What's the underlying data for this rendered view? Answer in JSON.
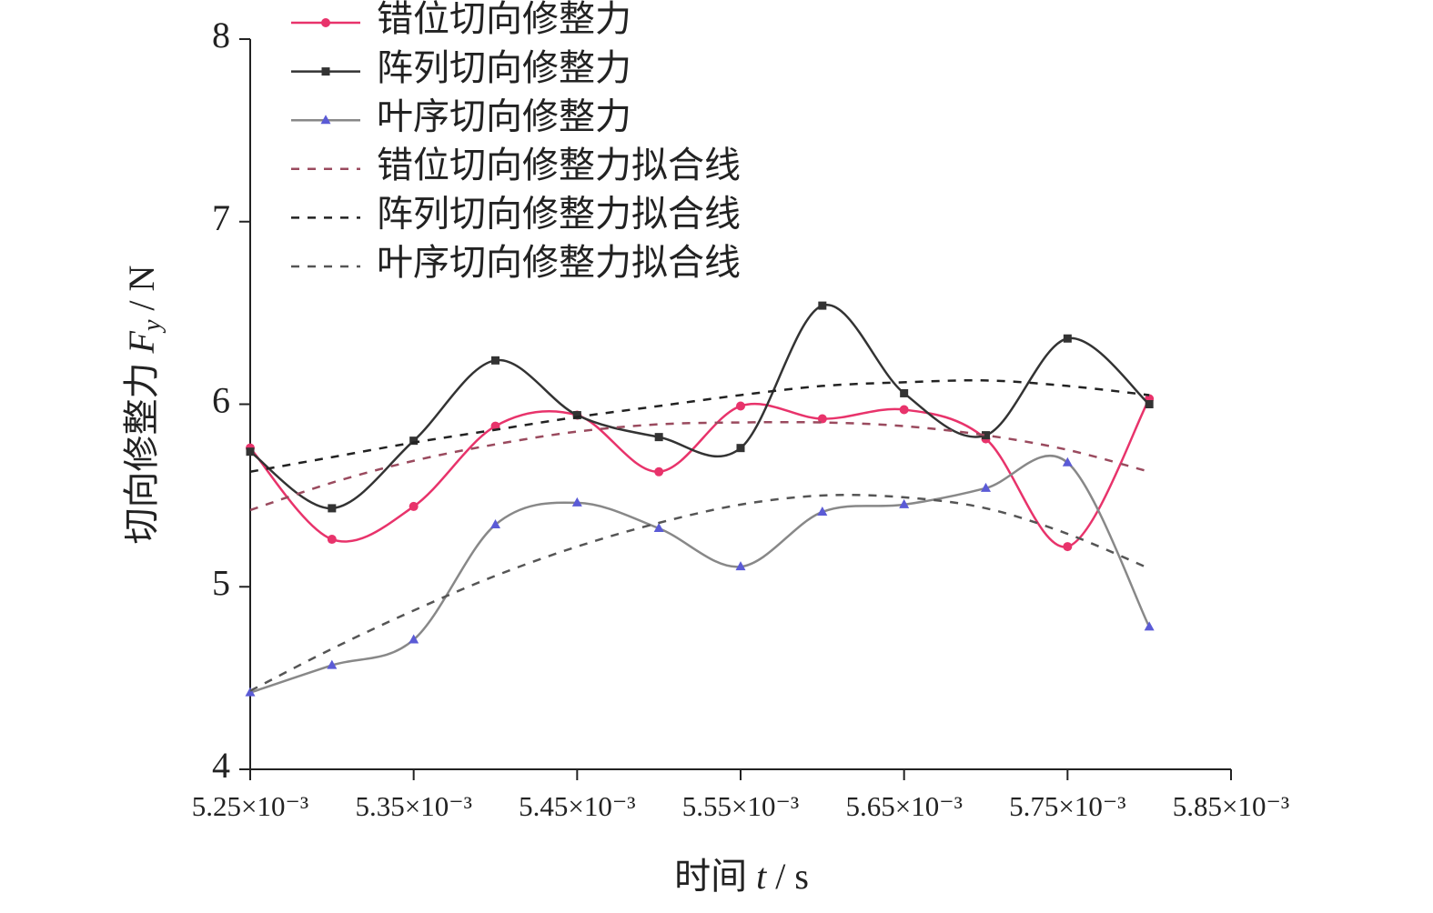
{
  "chart_data": {
    "type": "line",
    "xlabel_parts": [
      "时间 ",
      "t",
      " / s"
    ],
    "ylabel_parts": [
      "切向修整力 ",
      "F",
      "y",
      " / N"
    ],
    "x": [
      0.00525,
      0.0053,
      0.00535,
      0.0054,
      0.00545,
      0.0055,
      0.00555,
      0.0056,
      0.00565,
      0.0057,
      0.00575,
      0.0058
    ],
    "series": [
      {
        "name": "错位切向修整力",
        "color": "#e8336b",
        "marker": "circle",
        "dashed": false,
        "values": [
          5.76,
          5.26,
          5.44,
          5.88,
          5.94,
          5.63,
          5.99,
          5.92,
          5.97,
          5.81,
          5.22,
          6.03
        ]
      },
      {
        "name": "阵列切向修整力",
        "color": "#333333",
        "marker": "square",
        "dashed": false,
        "values": [
          5.74,
          5.43,
          5.8,
          6.24,
          5.94,
          5.82,
          5.76,
          6.54,
          6.06,
          5.83,
          6.36,
          6.0
        ]
      },
      {
        "name": "叶序切向修整力",
        "color": "#888888",
        "marker_color": "#5b5bd6",
        "marker": "triangle",
        "dashed": false,
        "values": [
          4.42,
          4.57,
          4.71,
          5.34,
          5.46,
          5.32,
          5.11,
          5.41,
          5.45,
          5.54,
          5.68,
          4.78
        ]
      },
      {
        "name": "错位切向修整力拟合线",
        "color": "#9a4a5e",
        "marker": "none",
        "dashed": true,
        "values": [
          5.42,
          5.57,
          5.69,
          5.78,
          5.85,
          5.89,
          5.9,
          5.9,
          5.88,
          5.83,
          5.75,
          5.63
        ]
      },
      {
        "name": "阵列切向修整力拟合线",
        "color": "#222222",
        "marker": "none",
        "dashed": true,
        "values": [
          5.63,
          5.71,
          5.79,
          5.86,
          5.93,
          5.99,
          6.05,
          6.1,
          6.12,
          6.13,
          6.1,
          6.05
        ]
      },
      {
        "name": "叶序切向修整力拟合线",
        "color": "#555555",
        "marker": "none",
        "dashed": true,
        "values": [
          4.43,
          4.66,
          4.87,
          5.06,
          5.22,
          5.35,
          5.45,
          5.5,
          5.49,
          5.43,
          5.29,
          5.1
        ]
      }
    ],
    "xlim": [
      0.00525,
      0.00585
    ],
    "xticks": [
      {
        "value": 0.00525,
        "label": "5.25×10⁻³"
      },
      {
        "value": 0.00535,
        "label": "5.35×10⁻³"
      },
      {
        "value": 0.00545,
        "label": "5.45×10⁻³"
      },
      {
        "value": 0.00555,
        "label": "5.55×10⁻³"
      },
      {
        "value": 0.00565,
        "label": "5.65×10⁻³"
      },
      {
        "value": 0.00575,
        "label": "5.75×10⁻³"
      },
      {
        "value": 0.00585,
        "label": "5.85×10⁻³"
      }
    ],
    "ylim": [
      4,
      8
    ],
    "yticks": [
      4,
      5,
      6,
      7,
      8
    ],
    "grid": false,
    "legend": "top"
  }
}
